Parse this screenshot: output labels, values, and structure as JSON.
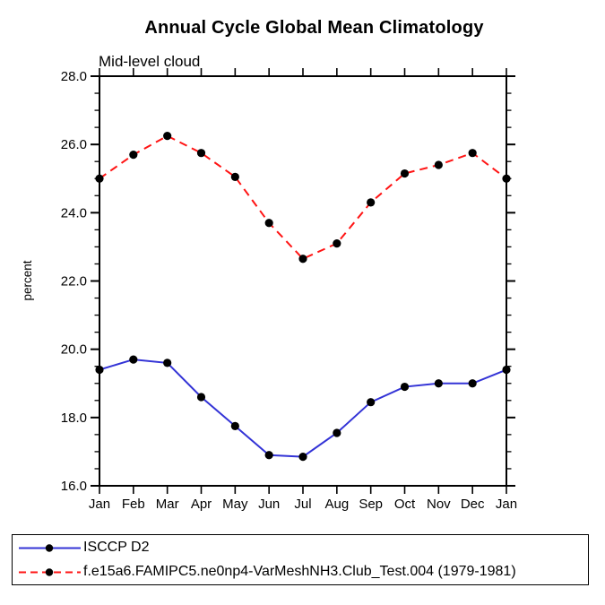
{
  "chart_data": {
    "type": "line",
    "title": "Annual Cycle Global Mean Climatology",
    "subtitle": "Mid-level cloud",
    "xlabel": "",
    "ylabel": "percent",
    "categories": [
      "Jan",
      "Feb",
      "Mar",
      "Apr",
      "May",
      "Jun",
      "Jul",
      "Aug",
      "Sep",
      "Oct",
      "Nov",
      "Dec",
      "Jan"
    ],
    "ylim": [
      16.0,
      28.0
    ],
    "ytick_major": [
      16.0,
      18.0,
      20.0,
      22.0,
      24.0,
      26.0,
      28.0
    ],
    "ytick_labels": [
      "16.0",
      "18.0",
      "20.0",
      "22.0",
      "24.0",
      "26.0",
      "28.0"
    ],
    "ytick_minor_step": 0.5,
    "grid": false,
    "legend_position": "bottom-left-box",
    "series": [
      {
        "name": "ISCCP D2",
        "color": "#3333d6",
        "line_style": "solid",
        "marker": "filled-circle",
        "marker_color": "#000000",
        "values": [
          19.4,
          19.7,
          19.6,
          18.6,
          17.75,
          16.9,
          16.85,
          17.55,
          18.45,
          18.9,
          19.0,
          19.0,
          19.4
        ]
      },
      {
        "name": "f.e15a6.FAMIPC5.ne0np4-VarMeshNH3.Club_Test.004 (1979-1981)",
        "color": "#ff1414",
        "line_style": "dashed",
        "marker": "filled-circle",
        "marker_color": "#000000",
        "values": [
          25.0,
          25.7,
          26.25,
          25.75,
          25.05,
          23.7,
          22.65,
          23.1,
          24.3,
          25.15,
          25.4,
          25.75,
          25.0
        ]
      }
    ]
  }
}
